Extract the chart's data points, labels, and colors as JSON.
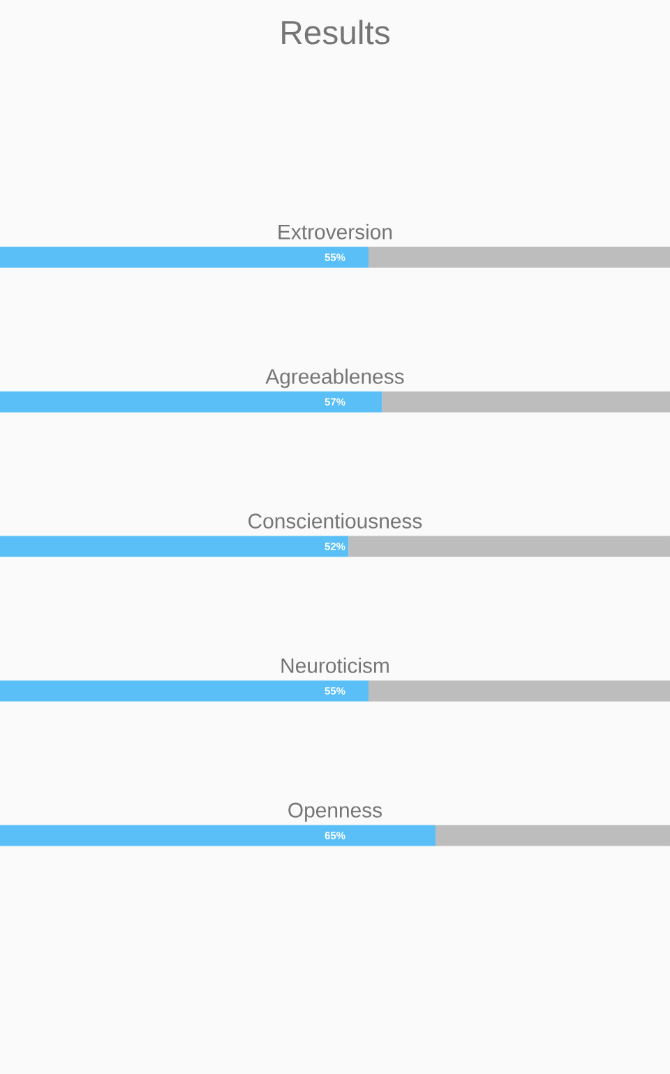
{
  "chart_data": {
    "type": "bar",
    "orientation": "horizontal",
    "stacked": true,
    "xlim": [
      0,
      100
    ],
    "title": "Results",
    "categories": [
      "Extroversion",
      "Agreeableness",
      "Conscientiousness",
      "Neuroticism",
      "Openness"
    ],
    "series": [
      {
        "color": "#5bbff7",
        "values": [
          55,
          57,
          52,
          55,
          65
        ],
        "value_labels": [
          "55%",
          "57%",
          "52%",
          "55%",
          "65%"
        ]
      },
      {
        "color": "#bdbdbd",
        "values": [
          45,
          43,
          48,
          45,
          35
        ]
      }
    ]
  }
}
